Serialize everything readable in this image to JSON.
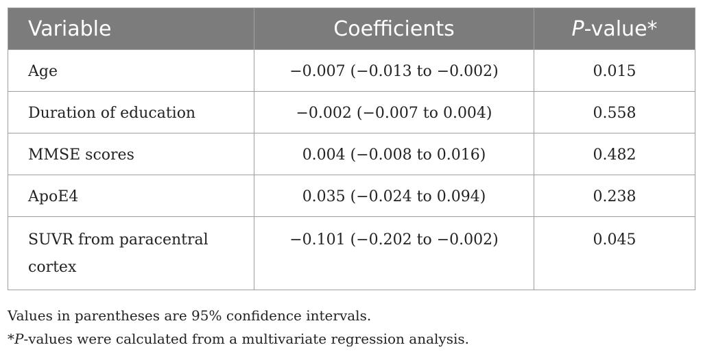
{
  "table": {
    "headers": {
      "variable": "Variable",
      "coefficients": "Coefficients",
      "p_italic": "P",
      "p_rest": "-value*"
    },
    "rows": [
      {
        "variable": "Age",
        "coefficient": "−0.007 (−0.013 to −0.002)",
        "p_value": "0.015"
      },
      {
        "variable": "Duration of education",
        "coefficient": "−0.002 (−0.007 to 0.004)",
        "p_value": "0.558"
      },
      {
        "variable": "MMSE scores",
        "coefficient": "0.004 (−0.008 to 0.016)",
        "p_value": "0.482"
      },
      {
        "variable": "ApoE4",
        "coefficient": "0.035 (−0.024 to 0.094)",
        "p_value": "0.238"
      },
      {
        "variable": "SUVR from paracentral cortex",
        "coefficient": "−0.101 (−0.202 to −0.002)",
        "p_value": "0.045"
      }
    ]
  },
  "footnotes": {
    "line1": "Values in parentheses are 95% confidence intervals.",
    "line2_prefix": "*",
    "line2_italic": "P",
    "line2_rest": "-values were calculated from a multivariate regression analysis."
  }
}
